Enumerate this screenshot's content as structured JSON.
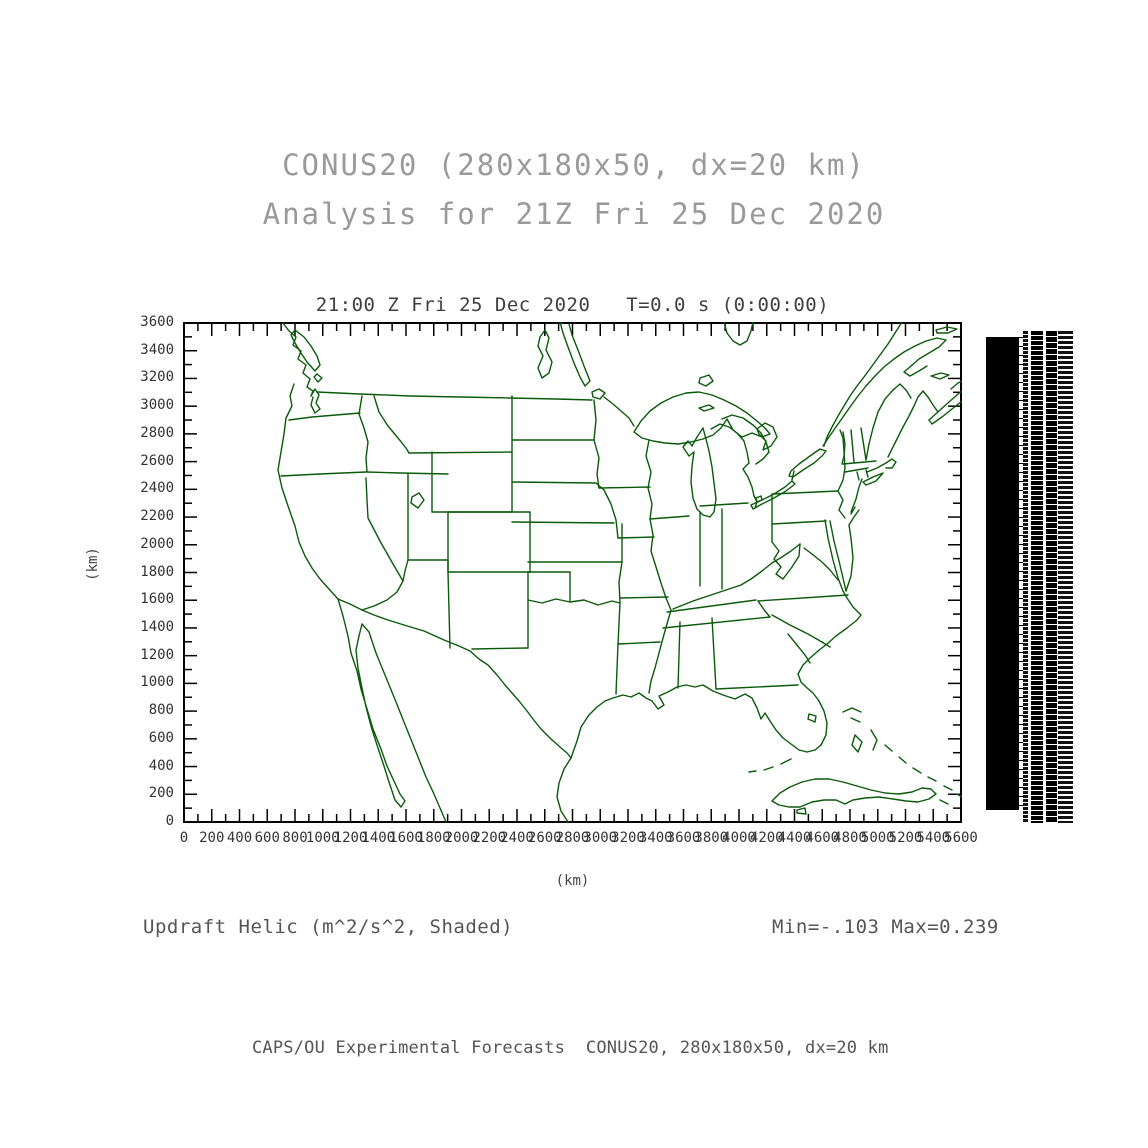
{
  "header": {
    "title_line1": "CONUS20 (280x180x50, dx=20 km)",
    "title_line2": "Analysis for 21Z Fri 25 Dec 2020"
  },
  "chart_data": {
    "type": "map-shaded-field",
    "title": "21:00 Z Fri 25 Dec 2020   T=0.0 s (0:00:00)",
    "xlabel": "(km)",
    "ylabel": "(km)",
    "xlim": [
      0,
      5600
    ],
    "ylim": [
      0,
      3600
    ],
    "x_tick_minor": 100,
    "x_tick_label_step": 200,
    "y_tick_minor": 100,
    "y_tick_label_step": 200,
    "x_ticks": [
      0,
      200,
      400,
      600,
      800,
      1000,
      1200,
      1400,
      1600,
      1800,
      2000,
      2200,
      2400,
      2600,
      2800,
      3000,
      3200,
      3400,
      3600,
      3800,
      4000,
      4200,
      4400,
      4600,
      4800,
      5000,
      5200,
      5400,
      5600
    ],
    "y_ticks": [
      0,
      200,
      400,
      600,
      800,
      1000,
      1200,
      1400,
      1600,
      1800,
      2000,
      2200,
      2400,
      2600,
      2800,
      3000,
      3200,
      3400,
      3600
    ],
    "field": {
      "name": "Updraft Helic",
      "units": "m^2/s^2",
      "style": "Shaded",
      "min": -0.103,
      "max": 0.239
    },
    "map_line_color": "#0a5a0a",
    "frame_color": "#000000",
    "colorbar": {
      "fill": "#000000",
      "labels_overlapping_illegible": true
    },
    "map_layers": [
      "North America coastlines",
      "US state boundaries",
      "Great Lakes",
      "Cuba and Bahamas"
    ]
  },
  "annotations": {
    "field_label": "Updraft Helic (m^2/s^2, Shaded)",
    "minmax_label": "Min=-.103 Max=0.239"
  },
  "footer": {
    "credit": "CAPS/OU Experimental Forecasts  CONUS20, 280x180x50, dx=20 km"
  }
}
